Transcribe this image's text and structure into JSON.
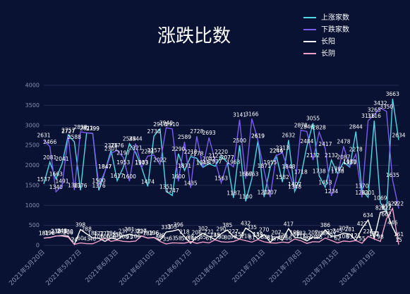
{
  "chart_data": {
    "type": "line",
    "title": "涨跌比数",
    "categories": [
      "2021年5月20日",
      null,
      null,
      null,
      null,
      null,
      "2021年5月27日",
      null,
      null,
      null,
      null,
      null,
      "2021年6月3日",
      null,
      null,
      null,
      null,
      null,
      "2021年6月10日",
      null,
      null,
      null,
      null,
      null,
      "2021年6月17日",
      null,
      null,
      null,
      null,
      null,
      "2021年6月24日",
      null,
      null,
      null,
      null,
      null,
      "2021年7月1日",
      null,
      null,
      null,
      null,
      null,
      "2021年7月8日",
      null,
      null,
      null,
      null,
      null,
      "2021年7月15日",
      null,
      null,
      null,
      null,
      null,
      "2021年7月19日",
      null,
      null,
      null,
      null
    ],
    "series": [
      {
        "name": "上涨家数",
        "color": "#4fd8e8",
        "values": [
          1537,
          2081,
          1663,
          2041,
          2757,
          2588,
          1376,
          2811,
          2799,
          1376,
          1847,
          2376,
          1617,
          1953,
          2544,
          2321,
          1943,
          1474,
          2730,
          2910,
          1351,
          1247,
          2290,
          1871,
          2218,
          2178,
          1948,
          2042,
          1977,
          2220,
          2077,
          1187,
          2500,
          1100,
          1663,
          2619,
          1207,
          1955,
          2246,
          1582,
          2632,
          1348,
          1718,
          2484,
          3055,
          1738,
          1453,
          2132,
          1792,
          2087,
          1953,
          2844,
          1370,
          1201,
          3116,
          1069,
          822,
          3663,
          2634
        ]
      },
      {
        "name": "下跌家数",
        "color": "#7b5cf0",
        "values": [
          2631,
          2466,
          1340,
          1491,
          2727,
          1381,
          2838,
          2811,
          2799,
          1500,
          1847,
          2301,
          2376,
          2197,
          1600,
          2544,
          1953,
          2231,
          2257,
          2022,
          2940,
          2910,
          1600,
          2589,
          1435,
          2728,
          1948,
          2693,
          2122,
          1563,
          2077,
          1963,
          3141,
          1667,
          3166,
          2619,
          1871,
          1207,
          2244,
          2313,
          1848,
          1407,
          2878,
          2846,
          2132,
          2828,
          2417,
          1234,
          1738,
          2478,
          1970,
          2278,
          1201,
          3116,
          3265,
          3432,
          3350,
          1635,
          922
        ]
      },
      {
        "name": "长阳",
        "color": "#ffffff",
        "values": [
          181,
          198,
          233,
          248,
          230,
          24,
          398,
          288,
          186,
          177,
          100,
          184,
          150,
          237,
          281,
          238,
          229,
          183,
          196,
          130,
          333,
          355,
          396,
          218,
          54,
          206,
          302,
          221,
          145,
          290,
          385,
          227,
          155,
          432,
          335,
          159,
          270,
          81,
          207,
          129,
          417,
          199,
          183,
          112,
          207,
          188,
          386,
          225,
          245,
          307,
          281,
          121,
          422,
          634,
          172,
          822,
          857,
          446,
          161
        ]
      },
      {
        "name": "长阴",
        "color": "#f0a0c8",
        "values": [
          181,
          192,
          236,
          233,
          206,
          24,
          60,
          43,
          40,
          106,
          177,
          100,
          130,
          100,
          91,
          106,
          237,
          183,
          196,
          98,
          35,
          63,
          58,
          54,
          98,
          49,
          85,
          61,
          138,
          90,
          80,
          96,
          155,
          118,
          81,
          145,
          88,
          63,
          57,
          82,
          66,
          159,
          117,
          49,
          91,
          85,
          184,
          121,
          62,
          108,
          93,
          121,
          55,
          225,
          162,
          98,
          662,
          922,
          15
        ]
      }
    ],
    "ylim": [
      0,
      4000
    ],
    "yticks": [
      0,
      500,
      1000,
      1500,
      2000,
      2500,
      3000,
      3500,
      4000
    ],
    "grid": true
  }
}
